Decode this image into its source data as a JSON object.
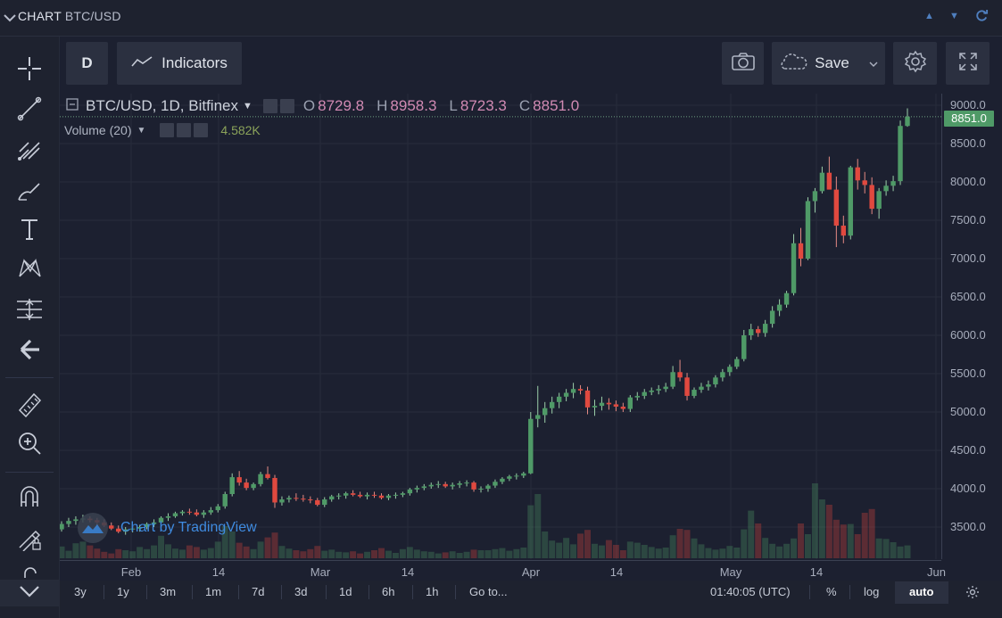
{
  "app": {
    "title_prefix": "CHART",
    "title_symbol": "BTC/USD"
  },
  "toolbar": {
    "interval": "D",
    "indicators_label": "Indicators",
    "save_label": "Save"
  },
  "legend": {
    "symbol": "BTC/USD, 1D, Bitfinex",
    "open_label": "O",
    "open": "8729.8",
    "high_label": "H",
    "high": "8958.3",
    "low_label": "L",
    "low": "8723.3",
    "close_label": "C",
    "close": "8851.0",
    "volume_label": "Volume (20)",
    "volume_value": "4.582K"
  },
  "current_price": "8851.0",
  "watermark": "Chart by TradingView",
  "bottom": {
    "ranges": [
      "3y",
      "1y",
      "3m",
      "1m",
      "7d",
      "3d",
      "1d",
      "6h",
      "1h"
    ],
    "goto": "Go to...",
    "time": "01:40:05 (UTC)",
    "percent": "%",
    "log": "log",
    "auto": "auto"
  },
  "colors": {
    "up": "#4f9a67",
    "down": "#e0493f",
    "background": "#1c2030",
    "accent": "#d18ab3"
  },
  "chart_data": {
    "type": "candlestick",
    "title": "BTC/USD, 1D, Bitfinex",
    "xlabel": "",
    "ylabel": "",
    "y_ticks": [
      3500,
      4000,
      4500,
      5000,
      5500,
      6000,
      6500,
      7000,
      7500,
      8000,
      8500,
      9000
    ],
    "y_tick_labels": [
      "3500.0",
      "4000.0",
      "4500.0",
      "5000.0",
      "5500.0",
      "6000.0",
      "6500.0",
      "7000.0",
      "7500.0",
      "8000.0",
      "8500.0",
      "9000.0"
    ],
    "x_tick_labels": [
      "Feb",
      "14",
      "Mar",
      "14",
      "Apr",
      "14",
      "May",
      "14",
      "Jun"
    ],
    "grid": true,
    "series": [
      {
        "name": "price",
        "values": []
      }
    ],
    "candles": [
      [
        3470,
        3575,
        3440,
        3540
      ],
      [
        3540,
        3620,
        3500,
        3580
      ],
      [
        3580,
        3640,
        3530,
        3600
      ],
      [
        3600,
        3660,
        3560,
        3610
      ],
      [
        3610,
        3640,
        3560,
        3590
      ],
      [
        3590,
        3620,
        3520,
        3560
      ],
      [
        3560,
        3600,
        3500,
        3520
      ],
      [
        3520,
        3560,
        3460,
        3480
      ],
      [
        3480,
        3520,
        3420,
        3440
      ],
      [
        3440,
        3500,
        3400,
        3470
      ],
      [
        3470,
        3520,
        3430,
        3480
      ],
      [
        3480,
        3530,
        3440,
        3500
      ],
      [
        3500,
        3560,
        3470,
        3540
      ],
      [
        3540,
        3600,
        3500,
        3560
      ],
      [
        3560,
        3640,
        3520,
        3620
      ],
      [
        3620,
        3680,
        3580,
        3640
      ],
      [
        3640,
        3700,
        3620,
        3680
      ],
      [
        3680,
        3720,
        3650,
        3700
      ],
      [
        3700,
        3740,
        3660,
        3690
      ],
      [
        3690,
        3730,
        3640,
        3660
      ],
      [
        3660,
        3720,
        3620,
        3690
      ],
      [
        3690,
        3760,
        3660,
        3720
      ],
      [
        3720,
        3800,
        3690,
        3770
      ],
      [
        3770,
        3960,
        3740,
        3930
      ],
      [
        3930,
        4200,
        3900,
        4150
      ],
      [
        4150,
        4230,
        4040,
        4080
      ],
      [
        4080,
        4130,
        3980,
        4010
      ],
      [
        4010,
        4080,
        3980,
        4060
      ],
      [
        4060,
        4220,
        4030,
        4190
      ],
      [
        4190,
        4290,
        4120,
        4140
      ],
      [
        4140,
        4180,
        3750,
        3820
      ],
      [
        3820,
        3900,
        3780,
        3860
      ],
      [
        3860,
        3910,
        3820,
        3880
      ],
      [
        3880,
        3940,
        3840,
        3870
      ],
      [
        3870,
        3920,
        3830,
        3860
      ],
      [
        3860,
        3900,
        3810,
        3850
      ],
      [
        3850,
        3880,
        3770,
        3790
      ],
      [
        3790,
        3890,
        3760,
        3860
      ],
      [
        3860,
        3920,
        3830,
        3900
      ],
      [
        3900,
        3940,
        3860,
        3910
      ],
      [
        3910,
        3960,
        3870,
        3940
      ],
      [
        3940,
        3980,
        3900,
        3920
      ],
      [
        3920,
        3960,
        3880,
        3900
      ],
      [
        3900,
        3950,
        3860,
        3920
      ],
      [
        3920,
        3960,
        3880,
        3910
      ],
      [
        3910,
        3940,
        3860,
        3880
      ],
      [
        3880,
        3930,
        3850,
        3910
      ],
      [
        3910,
        3950,
        3870,
        3920
      ],
      [
        3920,
        3960,
        3890,
        3940
      ],
      [
        3940,
        4010,
        3910,
        3990
      ],
      [
        3990,
        4040,
        3950,
        4010
      ],
      [
        4010,
        4060,
        3980,
        4030
      ],
      [
        4030,
        4080,
        4000,
        4050
      ],
      [
        4050,
        4100,
        4010,
        4060
      ],
      [
        4060,
        4090,
        4010,
        4030
      ],
      [
        4030,
        4080,
        3990,
        4050
      ],
      [
        4050,
        4100,
        4010,
        4070
      ],
      [
        4070,
        4110,
        4030,
        4080
      ],
      [
        4080,
        4100,
        3960,
        3990
      ],
      [
        3990,
        4030,
        3950,
        4000
      ],
      [
        4000,
        4060,
        3960,
        4040
      ],
      [
        4040,
        4120,
        4010,
        4090
      ],
      [
        4090,
        4150,
        4060,
        4130
      ],
      [
        4130,
        4180,
        4100,
        4160
      ],
      [
        4160,
        4200,
        4120,
        4170
      ],
      [
        4170,
        4220,
        4140,
        4200
      ],
      [
        4200,
        5000,
        4190,
        4910
      ],
      [
        4910,
        5340,
        4800,
        4960
      ],
      [
        4960,
        5130,
        4860,
        5050
      ],
      [
        5050,
        5200,
        4980,
        5130
      ],
      [
        5130,
        5250,
        5050,
        5200
      ],
      [
        5200,
        5300,
        5140,
        5250
      ],
      [
        5250,
        5380,
        5180,
        5300
      ],
      [
        5300,
        5350,
        5230,
        5280
      ],
      [
        5280,
        5330,
        4970,
        5060
      ],
      [
        5060,
        5160,
        4950,
        5080
      ],
      [
        5080,
        5200,
        5020,
        5120
      ],
      [
        5120,
        5180,
        5030,
        5100
      ],
      [
        5100,
        5150,
        5010,
        5070
      ],
      [
        5070,
        5120,
        5000,
        5040
      ],
      [
        5040,
        5220,
        5000,
        5190
      ],
      [
        5190,
        5260,
        5150,
        5210
      ],
      [
        5210,
        5300,
        5170,
        5260
      ],
      [
        5260,
        5320,
        5220,
        5280
      ],
      [
        5280,
        5350,
        5230,
        5300
      ],
      [
        5300,
        5380,
        5260,
        5330
      ],
      [
        5330,
        5600,
        5300,
        5520
      ],
      [
        5520,
        5680,
        5400,
        5450
      ],
      [
        5450,
        5510,
        5150,
        5210
      ],
      [
        5210,
        5320,
        5180,
        5290
      ],
      [
        5290,
        5380,
        5250,
        5330
      ],
      [
        5330,
        5410,
        5280,
        5360
      ],
      [
        5360,
        5480,
        5320,
        5450
      ],
      [
        5450,
        5560,
        5400,
        5520
      ],
      [
        5520,
        5620,
        5470,
        5590
      ],
      [
        5590,
        5720,
        5560,
        5690
      ],
      [
        5690,
        6070,
        5660,
        6000
      ],
      [
        6000,
        6150,
        5940,
        6080
      ],
      [
        6080,
        6120,
        5980,
        6030
      ],
      [
        6030,
        6200,
        5980,
        6150
      ],
      [
        6150,
        6380,
        6100,
        6320
      ],
      [
        6320,
        6470,
        6250,
        6400
      ],
      [
        6400,
        6580,
        6360,
        6550
      ],
      [
        6550,
        7320,
        6520,
        7200
      ],
      [
        7200,
        7400,
        6900,
        7000
      ],
      [
        7000,
        7800,
        6980,
        7750
      ],
      [
        7750,
        7920,
        7600,
        7880
      ],
      [
        7880,
        8200,
        7850,
        8120
      ],
      [
        8120,
        8330,
        7950,
        7900
      ],
      [
        7900,
        8070,
        7150,
        7430
      ],
      [
        7430,
        7560,
        7200,
        7300
      ],
      [
        7300,
        8210,
        7250,
        8190
      ],
      [
        8190,
        8300,
        7900,
        8020
      ],
      [
        8020,
        8130,
        7850,
        7960
      ],
      [
        7960,
        8060,
        7580,
        7650
      ],
      [
        7650,
        7920,
        7520,
        7880
      ],
      [
        7880,
        8020,
        7820,
        7950
      ],
      [
        7950,
        8080,
        7880,
        8010
      ],
      [
        8010,
        8800,
        7960,
        8730
      ],
      [
        8730,
        8960,
        8720,
        8851
      ]
    ],
    "volume_axis_max": 18000,
    "volumes": [
      2200,
      1400,
      2800,
      3100,
      2400,
      1800,
      1200,
      900,
      1700,
      1500,
      1300,
      2100,
      1700,
      2400,
      4200,
      2600,
      1800,
      1600,
      2400,
      2100,
      1600,
      1900,
      3100,
      6000,
      5000,
      2900,
      2200,
      1700,
      3100,
      3900,
      4800,
      2300,
      1800,
      1500,
      1300,
      1700,
      2300,
      1400,
      1600,
      1200,
      1100,
      1300,
      900,
      1200,
      1500,
      1900,
      1400,
      1000,
      1700,
      2100,
      1600,
      1300,
      1200,
      900,
      1100,
      1300,
      1000,
      1200,
      1600,
      1500,
      1500,
      1700,
      1900,
      1400,
      1700,
      2000,
      9900,
      12000,
      5000,
      3300,
      2900,
      3800,
      2600,
      4600,
      5300,
      2700,
      2400,
      3400,
      2500,
      1500,
      3100,
      2900,
      2500,
      2100,
      1800,
      2000,
      4300,
      5500,
      5300,
      3700,
      2600,
      1900,
      1600,
      1800,
      2300,
      2000,
      5400,
      8900,
      6500,
      3800,
      2700,
      2200,
      2700,
      3700,
      6500,
      4500,
      14000,
      11000,
      10000,
      7200,
      6300,
      6400,
      4500,
      8500,
      9200,
      3700,
      3600,
      3000,
      2200,
      2400
    ]
  }
}
